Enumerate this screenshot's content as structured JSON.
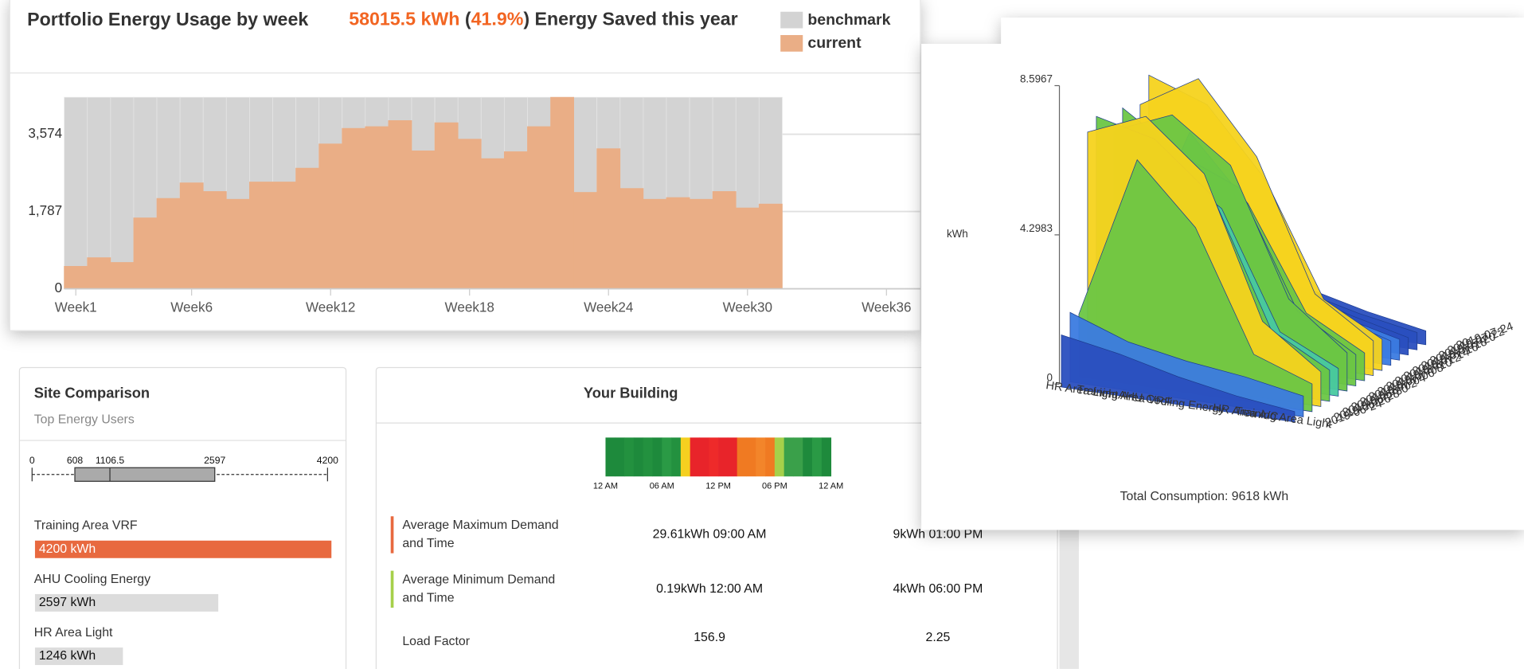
{
  "energy_chart": {
    "type": "bar",
    "title": "Portfolio Energy Usage by week",
    "headline": [
      {
        "text": "58015.5 kWh",
        "color": "#f26522"
      },
      {
        "text": " (",
        "color": "#333333"
      },
      {
        "text": "41.9%",
        "color": "#f26522"
      },
      {
        "text": ") Energy Saved this year",
        "color": "#333333"
      }
    ],
    "x": [
      1,
      2,
      3,
      4,
      5,
      6,
      7,
      8,
      9,
      10,
      11,
      12,
      13,
      14,
      15,
      16,
      17,
      18,
      19,
      20,
      21,
      22,
      23,
      24,
      25,
      26,
      27,
      28,
      29,
      30,
      31
    ],
    "series": [
      {
        "name": "benchmark",
        "color": "#d3d3d3",
        "values": [
          4428,
          4428,
          4428,
          4428,
          4428,
          4428,
          4428,
          4428,
          4428,
          4428,
          4428,
          4428,
          4428,
          4428,
          4428,
          4428,
          4428,
          4428,
          4428,
          4428,
          4428,
          4428,
          4428,
          4428,
          4428,
          4428,
          4428,
          4428,
          4428,
          4428,
          4428
        ]
      },
      {
        "name": "current",
        "color": "#eaae86",
        "values": [
          520,
          720,
          610,
          1640,
          2090,
          2450,
          2250,
          2070,
          2470,
          2470,
          2790,
          3350,
          3710,
          3750,
          3890,
          3190,
          3840,
          3460,
          3010,
          3170,
          3750,
          4428,
          2230,
          3240,
          2320,
          2070,
          2110,
          2070,
          2250,
          1870,
          1960
        ]
      }
    ],
    "xlim": [
      0.5,
      37.5
    ],
    "xticks": [
      {
        "value": 1,
        "label": "Week1"
      },
      {
        "value": 6,
        "label": "Week6"
      },
      {
        "value": 12,
        "label": "Week12"
      },
      {
        "value": 18,
        "label": "Week18"
      },
      {
        "value": 24,
        "label": "Week24"
      },
      {
        "value": 30,
        "label": "Week30"
      },
      {
        "value": 36,
        "label": "Week36"
      }
    ],
    "ylim": [
      0,
      4428
    ],
    "yticks": [
      0,
      {
        "value": 1787,
        "label": "1,787"
      },
      {
        "value": 3574,
        "label": "3,574"
      }
    ],
    "grid": true
  },
  "site_comparison": {
    "title": "Site Comparison",
    "subtitle": "Top Energy Users",
    "box": {
      "min": 0,
      "q1": 608,
      "median": 1106.5,
      "q3": 2597,
      "max": 4200
    },
    "xlim": [
      0,
      4200
    ],
    "xticks": [
      0,
      608,
      1106.5,
      2597,
      4200
    ],
    "bars": [
      {
        "name": "Training Area VRF",
        "value": 4200,
        "value_label": "4200 kWh",
        "color": "#e8693f",
        "text_color": "#ffffff"
      },
      {
        "name": "AHU Cooling Energy",
        "value": 2597,
        "value_label": "2597 kWh",
        "color": "#dcdcdc",
        "text_color": "#111111"
      },
      {
        "name": "HR Area Light",
        "value": 1246,
        "value_label": "1246 kWh",
        "color": "#dcdcdc",
        "text_color": "#111111"
      }
    ]
  },
  "your_building": {
    "title": "Your Building",
    "heatmap_colors": [
      "#1e8a3c",
      "#1e8a3c",
      "#23913f",
      "#1e8a3c",
      "#23913f",
      "#1e8a3c",
      "#2a9a45",
      "#23913f",
      "#f5d020",
      "#e8242a",
      "#e8242a",
      "#ee2a2a",
      "#e8242a",
      "#e8242a",
      "#f07a22",
      "#f07a22",
      "#f3852a",
      "#f07a22",
      "#a6d04a",
      "#3aa04a",
      "#3aa04a",
      "#1e8a3c",
      "#2a9a45",
      "#1e8a3c"
    ],
    "heatmap_labels": [
      "12 AM",
      "06 AM",
      "12 PM",
      "06 PM",
      "12 AM"
    ],
    "rows": [
      {
        "label": [
          "Average Maximum Demand",
          "and Time"
        ],
        "color": "#e8693f",
        "values": [
          "29.61kWh 09:00 AM",
          "9kWh 01:00 PM"
        ]
      },
      {
        "label": [
          "Average Minimum Demand",
          "and Time"
        ],
        "color": "#a6d04a",
        "values": [
          "0.19kWh 12:00 AM",
          "4kWh 06:00 PM"
        ]
      },
      {
        "label": [
          "Load Factor"
        ],
        "values": [
          "156.9",
          "2.25"
        ]
      }
    ]
  },
  "surface_chart": {
    "type": "surface3d",
    "axis_label": "kWh",
    "categories": [
      "HR Area Light",
      "Training Area VRF",
      "AHU Cooling Energy",
      "HR Area A/C",
      "Training Area Light"
    ],
    "dates": [
      "2019-06-24",
      "2019-06-26",
      "2019-06-28",
      "2019-06-30",
      "2019-07-02",
      "2019-07-04",
      "2019-07-06",
      "2019-07-08",
      "2019-07-10",
      "2019-07-12",
      "2019-07-14",
      "2019-07-16",
      "2019-07-18",
      "2019-07-20",
      "2019-07-22",
      "2019-07-24"
    ],
    "series": [
      {
        "name": "HR Area Light",
        "values": [
          1.5,
          2.0,
          1.8,
          6.9,
          7.2,
          2.1,
          6.5,
          7.0,
          2.4,
          6.8,
          7.5,
          2.0,
          1.9,
          1.7,
          1.6,
          1.5
        ]
      },
      {
        "name": "Training Area VRF",
        "values": [
          1.2,
          1.4,
          6.5,
          7.6,
          6.8,
          6.0,
          7.2,
          5.9,
          6.4,
          7.8,
          6.9,
          2.1,
          1.8,
          1.6,
          1.4,
          1.3
        ]
      },
      {
        "name": "AHU Cooling Energy",
        "values": [
          0.8,
          1.1,
          4.8,
          6.2,
          5.4,
          4.9,
          6.0,
          5.2,
          4.6,
          5.8,
          5.0,
          1.8,
          1.5,
          1.4,
          1.2,
          1.1
        ]
      },
      {
        "name": "HR Area A/C",
        "values": [
          0.5,
          0.9,
          1.4,
          2.2,
          1.8,
          1.6,
          2.4,
          1.9,
          1.7,
          2.1,
          1.8,
          1.2,
          1.0,
          0.9,
          0.8,
          0.7
        ]
      },
      {
        "name": "Training Area Light",
        "values": [
          0.3,
          0.6,
          0.8,
          1.0,
          0.9,
          0.8,
          1.1,
          0.9,
          0.8,
          1.0,
          0.9,
          0.7,
          0.6,
          0.5,
          0.5,
          0.4
        ]
      }
    ],
    "zlim": [
      0,
      8.5967
    ],
    "zticks": [
      0,
      4.2983,
      8.5967
    ],
    "footer": "Total Consumption: 9618 kWh"
  }
}
